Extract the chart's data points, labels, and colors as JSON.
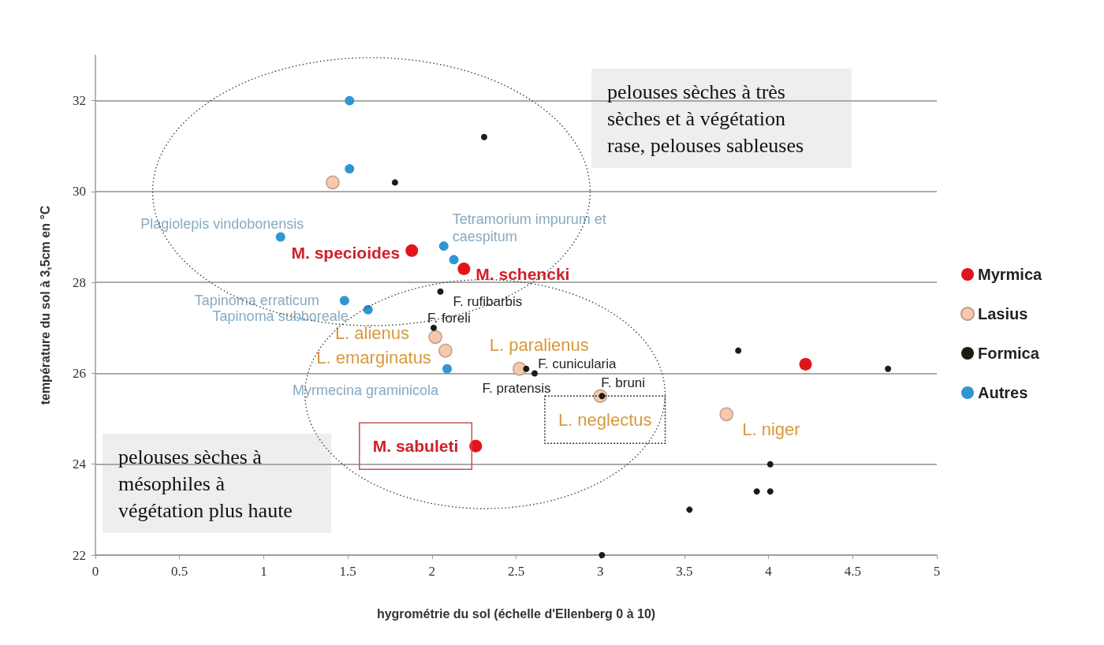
{
  "chart_data": {
    "type": "scatter",
    "xlabel": "hygrométrie du sol (échelle d'Ellenberg 0 à 10)",
    "ylabel": "température du sol à 3,5cm en °C",
    "xlim": [
      0,
      5
    ],
    "ylim": [
      22,
      33
    ],
    "xticks": [
      0,
      0.5,
      1,
      1.5,
      2,
      2.5,
      3,
      3.5,
      4,
      4.5,
      5
    ],
    "yticks": [
      22,
      24,
      26,
      28,
      30,
      32
    ],
    "grid": "y",
    "legend": "right",
    "marker": "circle",
    "series": [
      {
        "name": "Myrmica",
        "color": "#e3131b",
        "x": [
          1.88,
          2.19,
          2.26,
          4.22
        ],
        "values": [
          28.7,
          28.3,
          24.4,
          26.2
        ]
      },
      {
        "name": "Lasius",
        "color": "#f6c9ae",
        "x": [
          1.41,
          2.02,
          2.08,
          2.52,
          3.0,
          3.75
        ],
        "values": [
          30.2,
          26.8,
          26.5,
          26.1,
          25.5,
          25.1
        ]
      },
      {
        "name": "Formica",
        "color": "#1c1c10",
        "x": [
          1.78,
          2.31,
          2.05,
          2.01,
          2.56,
          2.61,
          3.01,
          3.82,
          4.71,
          4.01,
          3.93,
          4.01,
          3.53,
          3.01
        ],
        "values": [
          30.2,
          31.2,
          27.8,
          27.0,
          26.1,
          26.0,
          25.5,
          26.5,
          26.1,
          24.0,
          23.4,
          23.4,
          23.0,
          22.0
        ]
      },
      {
        "name": "Autres",
        "color": "#2f96d4",
        "x": [
          1.51,
          1.51,
          1.1,
          2.07,
          2.13,
          1.48,
          1.62,
          2.09
        ],
        "values": [
          32.0,
          30.5,
          29.0,
          28.8,
          28.5,
          27.6,
          27.4,
          26.1
        ]
      }
    ],
    "annotations": [
      "pelouses sèches à très sèches et à végétation rase, pelouses sableuses",
      "pelouses sèches à mésophiles à végétation plus haute",
      {
        "text": "Plagiolepis vindobonensis",
        "x": 1.1,
        "y": 29.0
      },
      {
        "text": "M. specioides",
        "x": 1.88,
        "y": 28.7
      },
      {
        "text": "Tetramorium impurum et caespitum",
        "x": 2.07,
        "y": 28.8
      },
      {
        "text": "M. schencki",
        "x": 2.19,
        "y": 28.3
      },
      {
        "text": "Tapinoma erraticum",
        "x": 1.48,
        "y": 27.6
      },
      {
        "text": "Tapinoma subboreale",
        "x": 1.62,
        "y": 27.4
      },
      {
        "text": "F. rufibarbis",
        "x": 2.05,
        "y": 27.8
      },
      {
        "text": "F. foreli",
        "x": 2.01,
        "y": 27.0
      },
      {
        "text": "L. alienus",
        "x": 2.02,
        "y": 26.8
      },
      {
        "text": "L. emarginatus",
        "x": 2.08,
        "y": 26.5
      },
      {
        "text": "Myrmecina graminicola",
        "x": 2.09,
        "y": 26.1
      },
      {
        "text": "L. paralienus",
        "x": 2.52,
        "y": 26.1
      },
      {
        "text": "F. cunicularia",
        "x": 2.56,
        "y": 26.1
      },
      {
        "text": "F. pratensis",
        "x": 2.61,
        "y": 26.0
      },
      {
        "text": "F. bruni",
        "x": 3.01,
        "y": 25.5
      },
      {
        "text": "L. neglectus",
        "x": 3.0,
        "y": 25.5
      },
      {
        "text": "M. sabuleti",
        "x": 2.26,
        "y": 24.4
      },
      {
        "text": "L. niger",
        "x": 3.75,
        "y": 25.1
      }
    ]
  }
}
